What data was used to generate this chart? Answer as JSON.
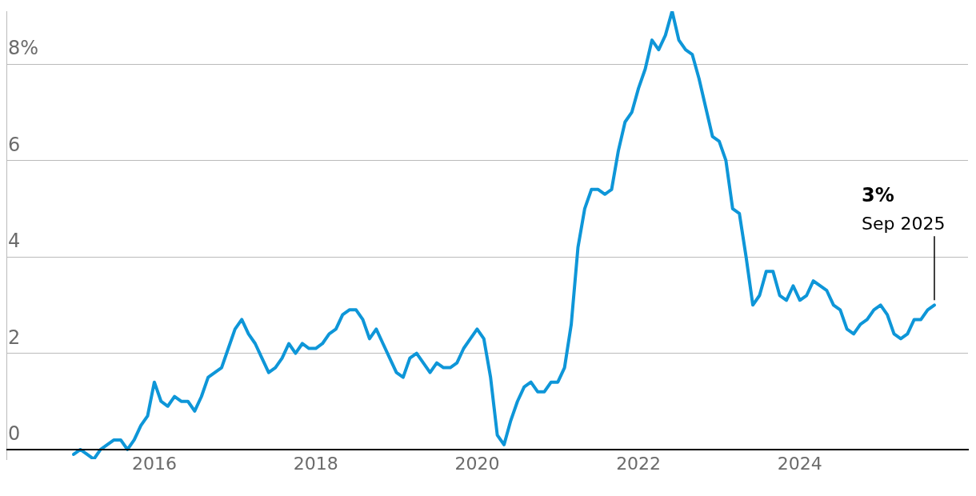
{
  "chart_data": {
    "type": "line",
    "x": [
      "2015-01",
      "2015-02",
      "2015-03",
      "2015-04",
      "2015-05",
      "2015-06",
      "2015-07",
      "2015-08",
      "2015-09",
      "2015-10",
      "2015-11",
      "2015-12",
      "2016-01",
      "2016-02",
      "2016-03",
      "2016-04",
      "2016-05",
      "2016-06",
      "2016-07",
      "2016-08",
      "2016-09",
      "2016-10",
      "2016-11",
      "2016-12",
      "2017-01",
      "2017-02",
      "2017-03",
      "2017-04",
      "2017-05",
      "2017-06",
      "2017-07",
      "2017-08",
      "2017-09",
      "2017-10",
      "2017-11",
      "2017-12",
      "2018-01",
      "2018-02",
      "2018-03",
      "2018-04",
      "2018-05",
      "2018-06",
      "2018-07",
      "2018-08",
      "2018-09",
      "2018-10",
      "2018-11",
      "2018-12",
      "2019-01",
      "2019-02",
      "2019-03",
      "2019-04",
      "2019-05",
      "2019-06",
      "2019-07",
      "2019-08",
      "2019-09",
      "2019-10",
      "2019-11",
      "2019-12",
      "2020-01",
      "2020-02",
      "2020-03",
      "2020-04",
      "2020-05",
      "2020-06",
      "2020-07",
      "2020-08",
      "2020-09",
      "2020-10",
      "2020-11",
      "2020-12",
      "2021-01",
      "2021-02",
      "2021-03",
      "2021-04",
      "2021-05",
      "2021-06",
      "2021-07",
      "2021-08",
      "2021-09",
      "2021-10",
      "2021-11",
      "2021-12",
      "2022-01",
      "2022-02",
      "2022-03",
      "2022-04",
      "2022-05",
      "2022-06",
      "2022-07",
      "2022-08",
      "2022-09",
      "2022-10",
      "2022-11",
      "2022-12",
      "2023-01",
      "2023-02",
      "2023-03",
      "2023-04",
      "2023-05",
      "2023-06",
      "2023-07",
      "2023-08",
      "2023-09",
      "2023-10",
      "2023-11",
      "2023-12",
      "2024-01",
      "2024-02",
      "2024-03",
      "2024-04",
      "2024-05",
      "2024-06",
      "2024-07",
      "2024-08",
      "2024-09",
      "2024-10",
      "2024-11",
      "2024-12",
      "2025-01",
      "2025-02",
      "2025-03",
      "2025-04",
      "2025-05",
      "2025-06",
      "2025-07",
      "2025-08",
      "2025-09"
    ],
    "series": [
      {
        "color": "#0e96d8",
        "values": [
          -0.1,
          0.0,
          -0.1,
          -0.2,
          0.0,
          0.1,
          0.2,
          0.2,
          0.0,
          0.2,
          0.5,
          0.7,
          1.4,
          1.0,
          0.9,
          1.1,
          1.0,
          1.0,
          0.8,
          1.1,
          1.5,
          1.6,
          1.7,
          2.1,
          2.5,
          2.7,
          2.4,
          2.2,
          1.9,
          1.6,
          1.7,
          1.9,
          2.2,
          2.0,
          2.2,
          2.1,
          2.1,
          2.2,
          2.4,
          2.5,
          2.8,
          2.9,
          2.9,
          2.7,
          2.3,
          2.5,
          2.2,
          1.9,
          1.6,
          1.5,
          1.9,
          2.0,
          1.8,
          1.6,
          1.8,
          1.7,
          1.7,
          1.8,
          2.1,
          2.3,
          2.5,
          2.3,
          1.5,
          0.3,
          0.1,
          0.6,
          1.0,
          1.3,
          1.4,
          1.2,
          1.2,
          1.4,
          1.4,
          1.7,
          2.6,
          4.2,
          5.0,
          5.4,
          5.4,
          5.3,
          5.4,
          6.2,
          6.8,
          7.0,
          7.5,
          7.9,
          8.5,
          8.3,
          8.6,
          9.1,
          8.5,
          8.3,
          8.2,
          7.7,
          7.1,
          6.5,
          6.4,
          6.0,
          5.0,
          4.9,
          4.0,
          3.0,
          3.2,
          3.7,
          3.7,
          3.2,
          3.1,
          3.4,
          3.1,
          3.2,
          3.5,
          3.4,
          3.3,
          3.0,
          2.9,
          2.5,
          2.4,
          2.6,
          2.7,
          2.9,
          3.0,
          2.8,
          2.4,
          2.3,
          2.4,
          2.7,
          2.7,
          2.9,
          3.0
        ]
      }
    ],
    "xlim": [
      "2014-03",
      "2026-02"
    ],
    "xticks": [
      "2016",
      "2018",
      "2020",
      "2022",
      "2024"
    ],
    "ylim": [
      -0.2,
      9.1
    ],
    "yticks": [
      0,
      2,
      4,
      6,
      {
        "value": 8,
        "label": "8%"
      }
    ],
    "grid": "y",
    "annotations": [
      {
        "text": "3%\nSep 2025",
        "x": "2025-09",
        "y": 3.0
      }
    ]
  }
}
